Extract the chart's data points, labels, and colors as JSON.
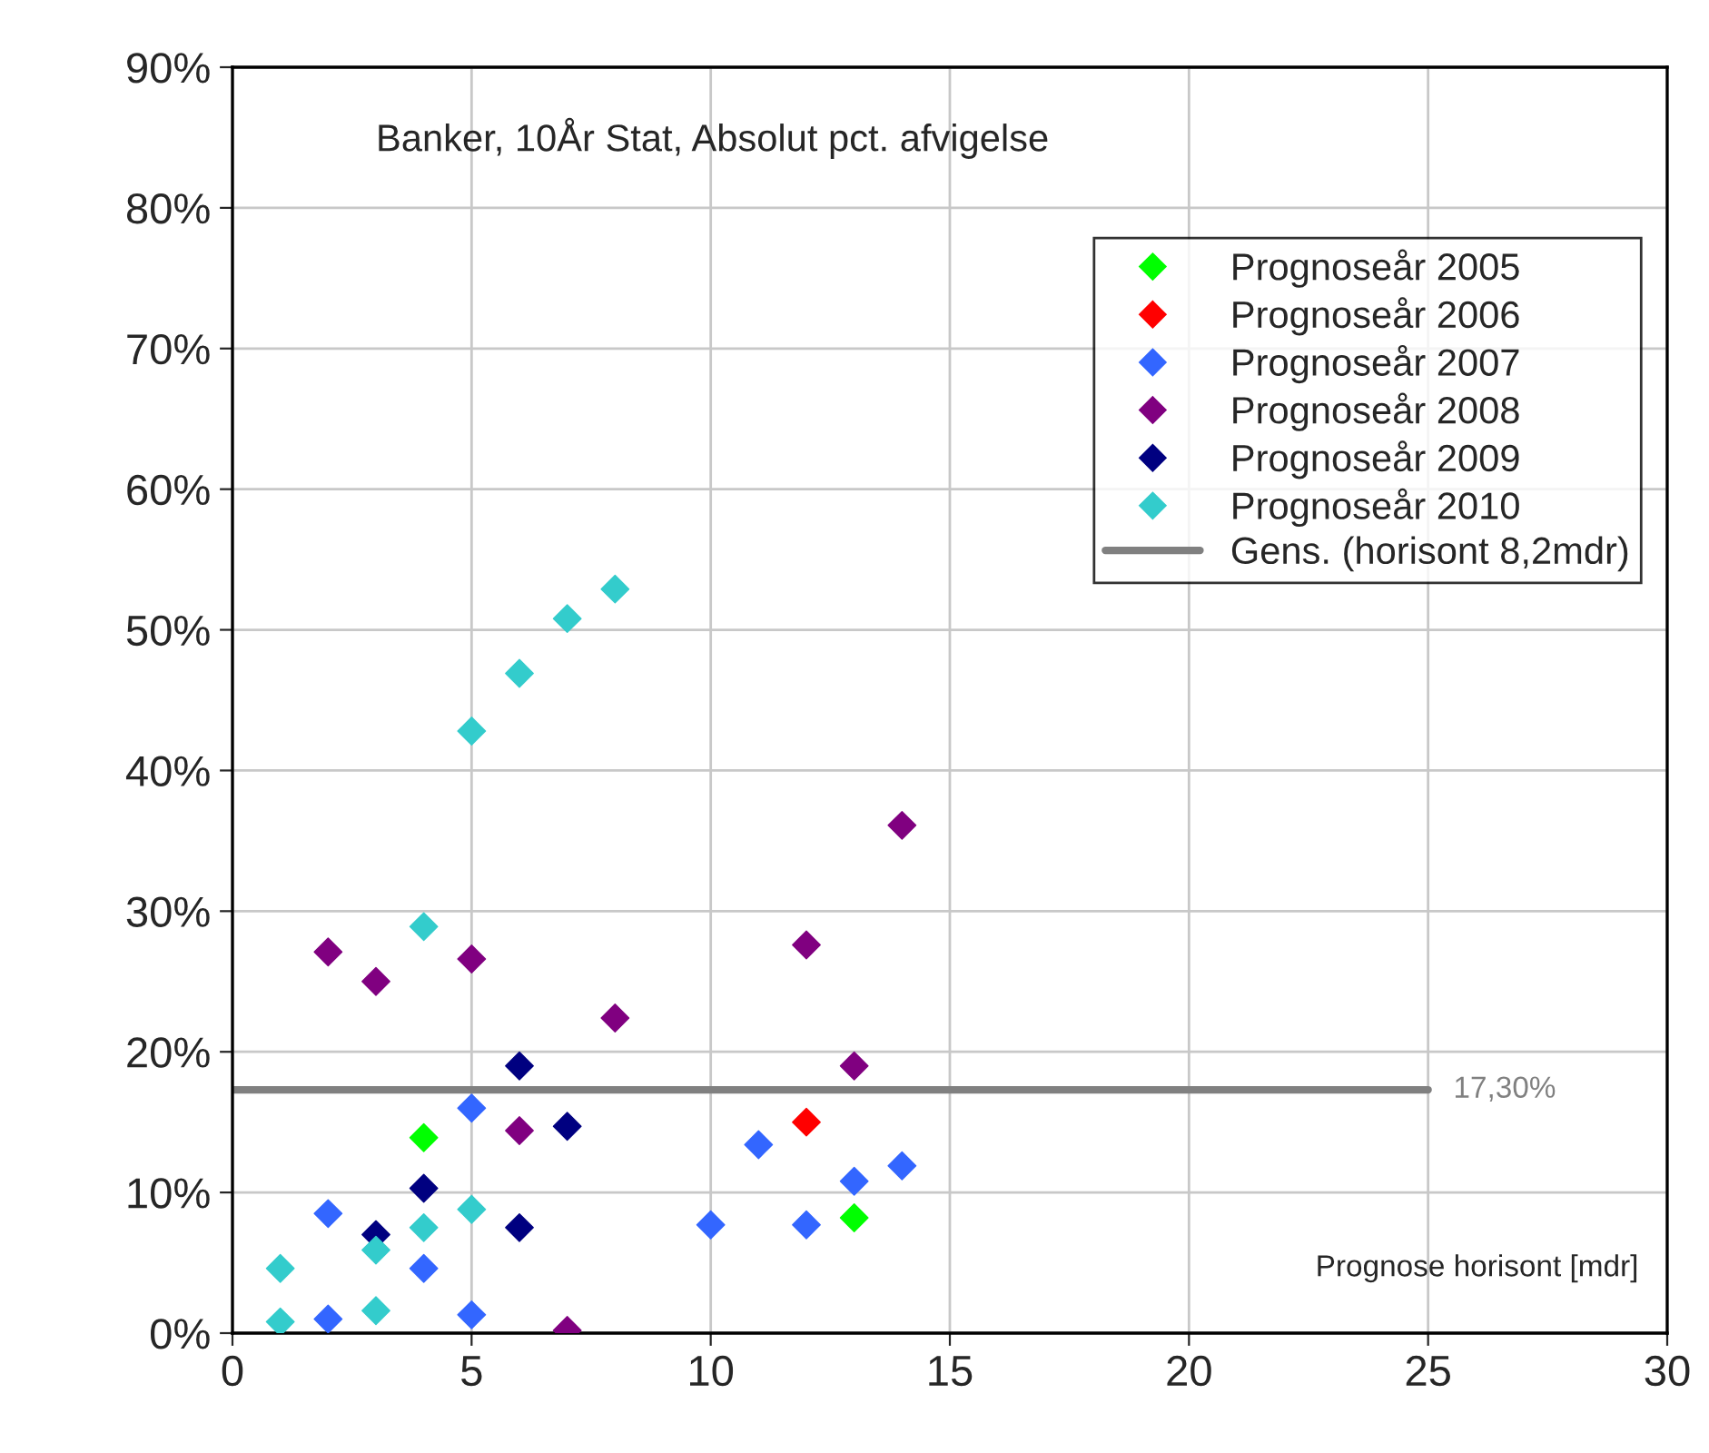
{
  "chart_data": {
    "type": "scatter",
    "title": "Banker, 10År Stat, Absolut pct. afvigelse",
    "xlabel": "Prognose horisont [mdr]",
    "xlim": [
      0,
      30
    ],
    "xticks": [
      0,
      5,
      10,
      15,
      20,
      25,
      30
    ],
    "ylim": [
      0,
      90
    ],
    "yticks": [
      {
        "value": 0,
        "label": "0%"
      },
      {
        "value": 10,
        "label": "10%"
      },
      {
        "value": 20,
        "label": "20%"
      },
      {
        "value": 30,
        "label": "30%"
      },
      {
        "value": 40,
        "label": "40%"
      },
      {
        "value": 50,
        "label": "50%"
      },
      {
        "value": 60,
        "label": "60%"
      },
      {
        "value": 70,
        "label": "70%"
      },
      {
        "value": 80,
        "label": "80%"
      },
      {
        "value": 90,
        "label": "90%"
      }
    ],
    "grid": true,
    "legend": "top right",
    "marker": "diamond",
    "series": [
      {
        "name": "Prognoseår 2005",
        "color": "#00ff00",
        "x": [
          4,
          13
        ],
        "values": [
          13.9,
          8.2
        ]
      },
      {
        "name": "Prognoseår 2006",
        "color": "#ff0000",
        "x": [
          12
        ],
        "values": [
          15.0
        ]
      },
      {
        "name": "Prognoseår 2007",
        "color": "#3366ff",
        "x": [
          2,
          2,
          4,
          5,
          5,
          10,
          11,
          12,
          13,
          14
        ],
        "values": [
          8.5,
          1.0,
          4.6,
          16.0,
          1.3,
          7.7,
          13.4,
          7.7,
          10.8,
          11.9
        ]
      },
      {
        "name": "Prognoseår 2008",
        "color": "#800080",
        "x": [
          2,
          3,
          5,
          6,
          7,
          8,
          12,
          13,
          14
        ],
        "values": [
          27.1,
          25.0,
          26.6,
          14.4,
          0.2,
          22.4,
          27.6,
          19.0,
          36.1
        ]
      },
      {
        "name": "Prognoseår 2009",
        "color": "#000080",
        "x": [
          3,
          4,
          6,
          6,
          7
        ],
        "values": [
          7.0,
          10.3,
          19.0,
          7.5,
          14.7
        ]
      },
      {
        "name": "Prognoseår 2010",
        "color": "#33cccc",
        "x": [
          1,
          1,
          3,
          3,
          4,
          4,
          5,
          5,
          6,
          7,
          8
        ],
        "values": [
          4.6,
          0.8,
          5.9,
          1.6,
          7.5,
          28.9,
          8.8,
          42.8,
          46.9,
          50.8,
          52.9
        ]
      },
      {
        "name": "Gens. (horisont 8,2mdr)",
        "type": "line",
        "marker": "none",
        "color": "#808080",
        "x": [
          0,
          25
        ],
        "values": [
          17.3,
          17.3
        ]
      }
    ],
    "annotations": [
      {
        "text": "17,30%",
        "x": 25,
        "y": 17.3
      }
    ]
  }
}
